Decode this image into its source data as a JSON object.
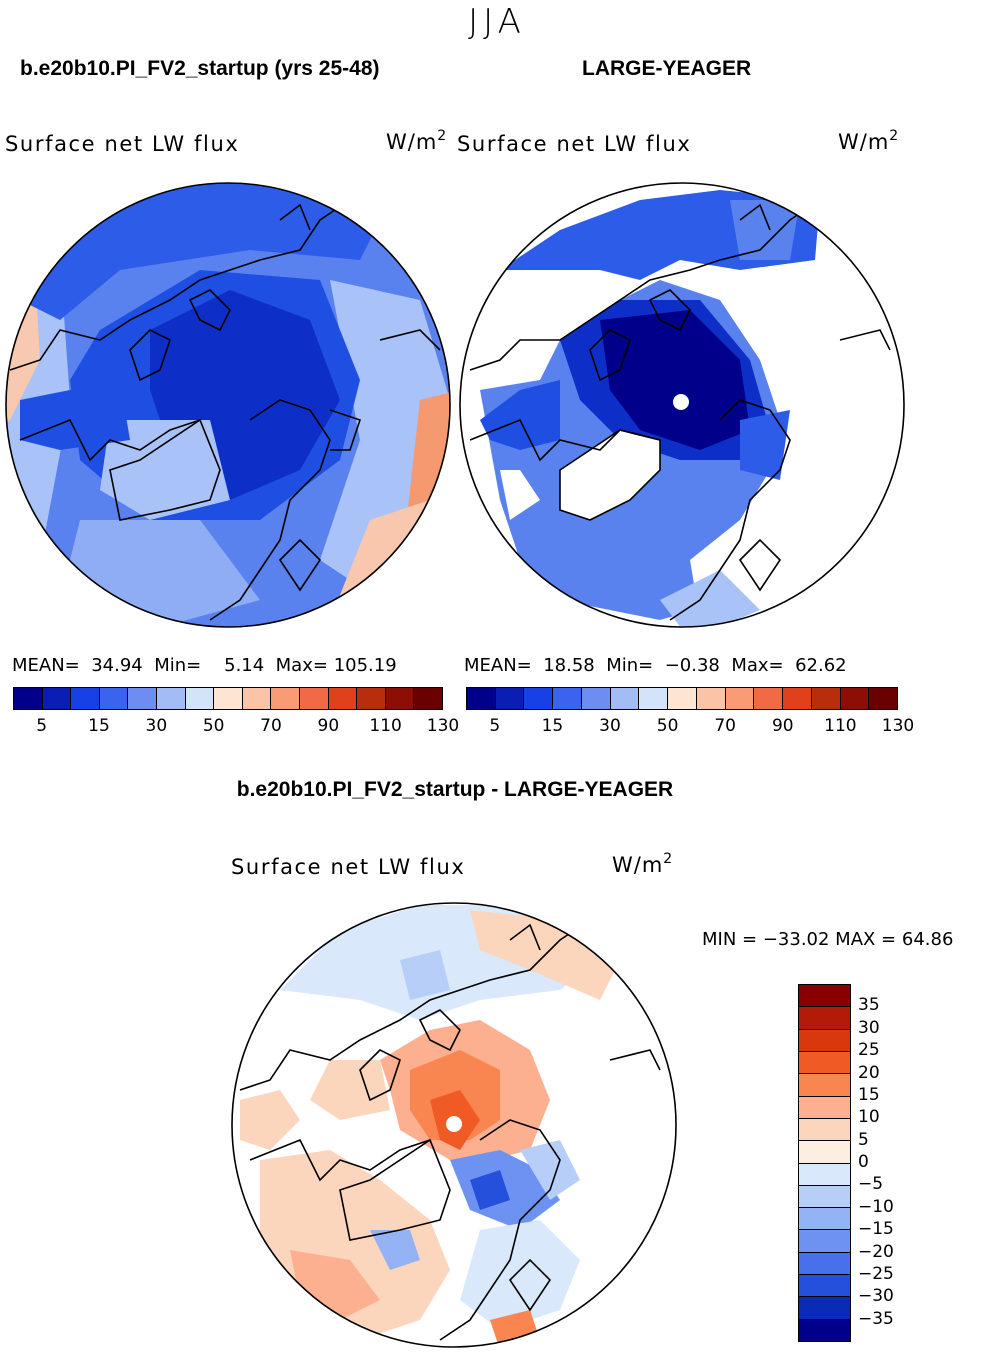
{
  "season": "JJA",
  "panels": {
    "left": {
      "title": "b.e20b10.PI_FV2_startup (yrs 25-48)",
      "variable": "Surface net LW flux",
      "units": "W/m",
      "units_exp": "2",
      "mean_label": "MEAN=",
      "mean": "34.94",
      "min_label": "Min=",
      "min": "5.14",
      "max_label": "Max=",
      "max": "105.19"
    },
    "right": {
      "title": "LARGE-YEAGER",
      "variable": "Surface net LW flux",
      "units": "W/m",
      "units_exp": "2",
      "mean_label": "MEAN=",
      "mean": "18.58",
      "min_label": "Min=",
      "min": "−0.38",
      "max_label": "Max=",
      "max": "62.62"
    },
    "diff": {
      "title": "b.e20b10.PI_FV2_startup - LARGE-YEAGER",
      "variable": "Surface net LW flux",
      "units": "W/m",
      "units_exp": "2",
      "minmax": "MIN = −33.02 MAX =  64.86"
    }
  },
  "colorbars": {
    "abs": {
      "colors": [
        "#00008a",
        "#0a1db4",
        "#1740e6",
        "#3a63f0",
        "#6d8df2",
        "#a4bcf6",
        "#d3e3fa",
        "#fde5d2",
        "#fcc4a6",
        "#f99c76",
        "#f26a45",
        "#e0401c",
        "#b82d0c",
        "#8c0e05",
        "#6a0000"
      ],
      "ticks": [
        "5",
        "15",
        "30",
        "50",
        "70",
        "90",
        "110",
        "130"
      ]
    },
    "diff": {
      "colors": [
        "#8a0000",
        "#b41a08",
        "#d9380e",
        "#f05a24",
        "#f98650",
        "#fcb090",
        "#fcd5bd",
        "#fdeee2",
        "#d9e9fb",
        "#b7cef9",
        "#94b3f5",
        "#6d92f1",
        "#4670ec",
        "#2450dc",
        "#0a2ab8",
        "#00008a"
      ],
      "ticks": [
        "35",
        "30",
        "25",
        "20",
        "15",
        "10",
        "5",
        "0",
        "−5",
        "−10",
        "−15",
        "−20",
        "−25",
        "−30",
        "−35"
      ]
    }
  },
  "colors": {
    "ice_deep": "#00008a",
    "ocean_blue": "#1f4fe2",
    "mid_blue": "#5a82ee",
    "light_blue": "#a9c2f7",
    "warm": "#f6a27e",
    "no_data": "#ffffff"
  }
}
